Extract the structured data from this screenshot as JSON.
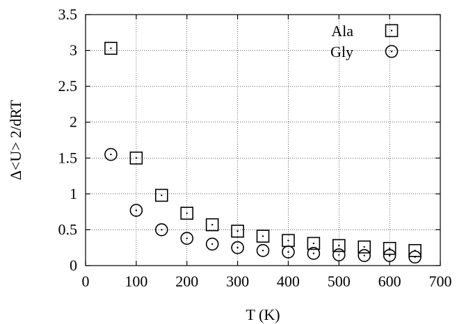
{
  "chart_data": {
    "type": "scatter",
    "title": "",
    "xlabel": "T (K)",
    "ylabel": "Δ<U> 2/dRT",
    "xlim": [
      0,
      700
    ],
    "ylim": [
      0,
      3.5
    ],
    "x_ticks": [
      "0",
      "100",
      "200",
      "300",
      "400",
      "500",
      "600",
      "700"
    ],
    "y_ticks": [
      "0",
      "0.5",
      "1",
      "1.5",
      "2",
      "2.5",
      "3",
      "3.5"
    ],
    "grid": true,
    "legend_position": "top-right",
    "series": [
      {
        "name": "Ala",
        "marker": "square",
        "x": [
          50,
          100,
          150,
          200,
          250,
          300,
          350,
          400,
          450,
          500,
          550,
          600,
          650
        ],
        "y": [
          3.03,
          1.5,
          0.98,
          0.73,
          0.57,
          0.48,
          0.41,
          0.35,
          0.31,
          0.28,
          0.26,
          0.24,
          0.21
        ]
      },
      {
        "name": "Gly",
        "marker": "circle",
        "x": [
          50,
          100,
          150,
          200,
          250,
          300,
          350,
          400,
          450,
          500,
          550,
          600,
          650
        ],
        "y": [
          1.55,
          0.77,
          0.5,
          0.38,
          0.3,
          0.25,
          0.21,
          0.19,
          0.17,
          0.15,
          0.14,
          0.14,
          0.12
        ]
      }
    ]
  }
}
